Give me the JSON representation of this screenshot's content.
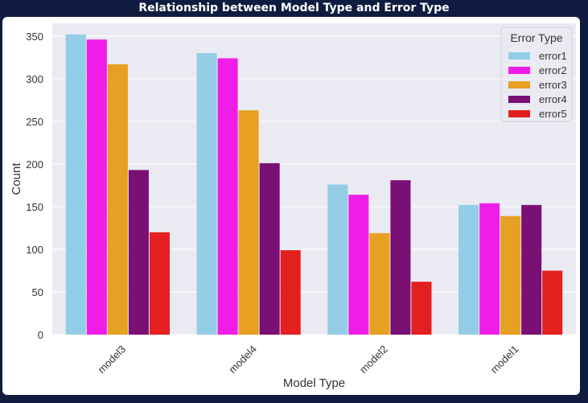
{
  "title": "Relationship between Model Type and Error Type",
  "colors": {
    "page_background": "#0f1c3f",
    "plot_background": "#eaeaf2",
    "grid": "#ffffff"
  },
  "chart_data": {
    "type": "bar",
    "title": "Relationship between Model Type and Error Type",
    "xlabel": "Model Type",
    "ylabel": "Count",
    "categories": [
      "model3",
      "model4",
      "model2",
      "model1"
    ],
    "ylim": [
      0,
      365
    ],
    "yticks": [
      0,
      50,
      100,
      150,
      200,
      250,
      300,
      350
    ],
    "grid": true,
    "legend": {
      "title": "Error Type",
      "placement": "top-right"
    },
    "series": [
      {
        "name": "error1",
        "color": "#93cde6",
        "values": [
          352,
          330,
          176,
          152
        ]
      },
      {
        "name": "error2",
        "color": "#f01de8",
        "values": [
          346,
          324,
          164,
          154
        ]
      },
      {
        "name": "error3",
        "color": "#e7a022",
        "values": [
          317,
          263,
          119,
          139
        ]
      },
      {
        "name": "error4",
        "color": "#7a0f74",
        "values": [
          193,
          201,
          181,
          152
        ]
      },
      {
        "name": "error5",
        "color": "#e31f1f",
        "values": [
          120,
          99,
          62,
          75
        ]
      }
    ]
  }
}
